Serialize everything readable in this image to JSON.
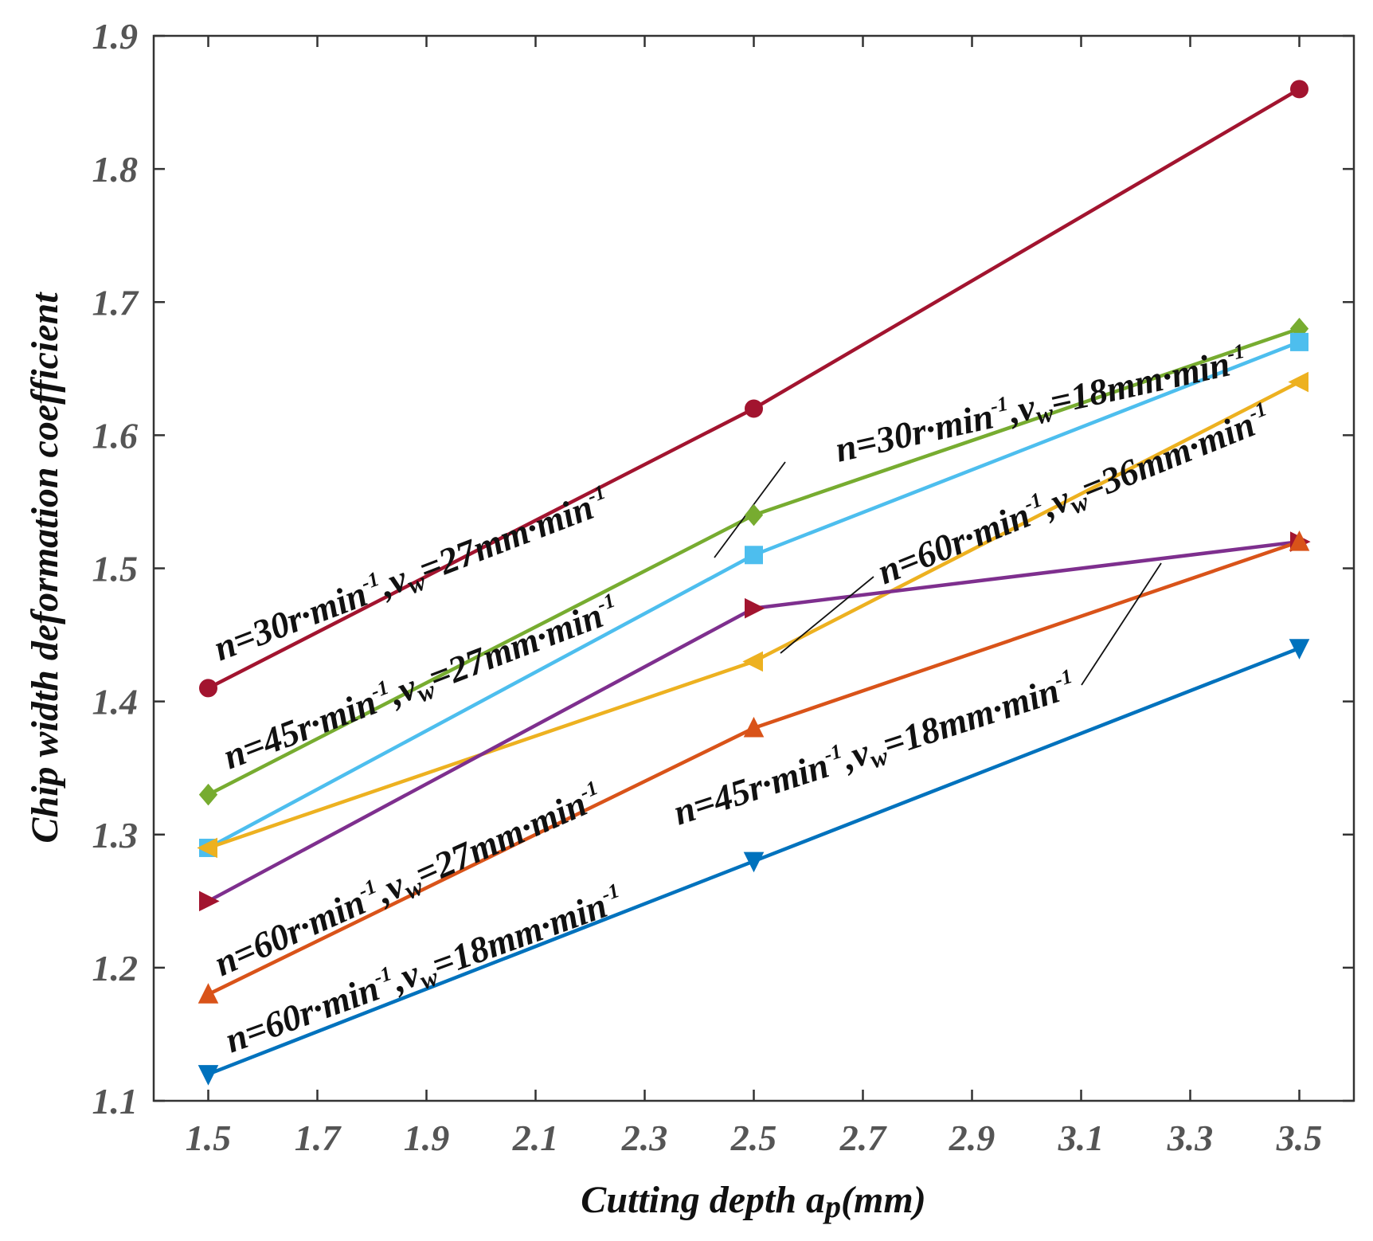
{
  "chart_data": {
    "type": "line",
    "title": "",
    "xlabel": "Cutting depth ap(mm)",
    "xlabel_parts": {
      "main": "Cutting depth a",
      "sub": "p",
      "unit": "(mm)"
    },
    "ylabel": "Chip width deformation coefficient",
    "xlim": [
      1.4,
      3.6
    ],
    "ylim": [
      1.1,
      1.9
    ],
    "x_ticks": [
      "1.5",
      "1.7",
      "1.9",
      "2.1",
      "2.3",
      "2.5",
      "2.7",
      "2.9",
      "3.1",
      "3.3",
      "3.5"
    ],
    "y_ticks": [
      "1.1",
      "1.2",
      "1.3",
      "1.4",
      "1.5",
      "1.6",
      "1.7",
      "1.8",
      "1.9"
    ],
    "grid": false,
    "x": [
      1.5,
      2.5,
      3.5
    ],
    "series": [
      {
        "name": "n=30r·min-1,vw=27mm·min-1",
        "color": "#a2142f",
        "marker": "circle",
        "values": [
          1.41,
          1.62,
          1.86
        ]
      },
      {
        "name": "n=45r·min-1,vw=27mm·min-1",
        "color": "#77ac30",
        "marker": "diamond",
        "values": [
          1.33,
          1.54,
          1.68
        ]
      },
      {
        "name": "n=30r·min-1,vw=18mm·min-1",
        "color": "#4dbeee",
        "marker": "square",
        "values": [
          1.29,
          1.51,
          1.67
        ]
      },
      {
        "name": "n=60r·min-1,vw=36mm·min-1",
        "color": "#edb120",
        "marker": "triangle-left",
        "values": [
          1.29,
          1.43,
          1.64
        ]
      },
      {
        "name": "n=60r·min-1,vw=27mm·min-1",
        "color": "#7e2f8e",
        "marker": "triangle-right",
        "values": [
          1.25,
          1.47,
          1.52
        ]
      },
      {
        "name": "n=45r·min-1,vw=18mm·min-1",
        "color": "#d95319",
        "marker": "triangle-up",
        "values": [
          1.18,
          1.38,
          1.52
        ]
      },
      {
        "name": "n=60r·min-1,vw=18mm·min-1",
        "color": "#0072bd",
        "marker": "triangle-down",
        "values": [
          1.12,
          1.28,
          1.44
        ]
      }
    ],
    "marker_fill_overrides": {
      "triangle-right": "#a2142f"
    },
    "annotations": [
      {
        "n": "30",
        "vw": "27",
        "text": "n=30r·min-1,vw=27mm·min-1"
      },
      {
        "n": "45",
        "vw": "27",
        "text": "n=45r·min-1,vw=27mm·min-1"
      },
      {
        "n": "30",
        "vw": "18",
        "text": "n=30r·min-1,vw=18mm·min-1"
      },
      {
        "n": "60",
        "vw": "36",
        "text": "n=60r·min-1,vw=36mm·min-1"
      },
      {
        "n": "60",
        "vw": "27",
        "text": "n=60r·min-1,vw=27mm·min-1"
      },
      {
        "n": "45",
        "vw": "18",
        "text": "n=45r·min-1,vw=18mm·min-1"
      },
      {
        "n": "60",
        "vw": "18",
        "text": "n=60r·min-1,vw=18mm·min-1"
      }
    ]
  }
}
